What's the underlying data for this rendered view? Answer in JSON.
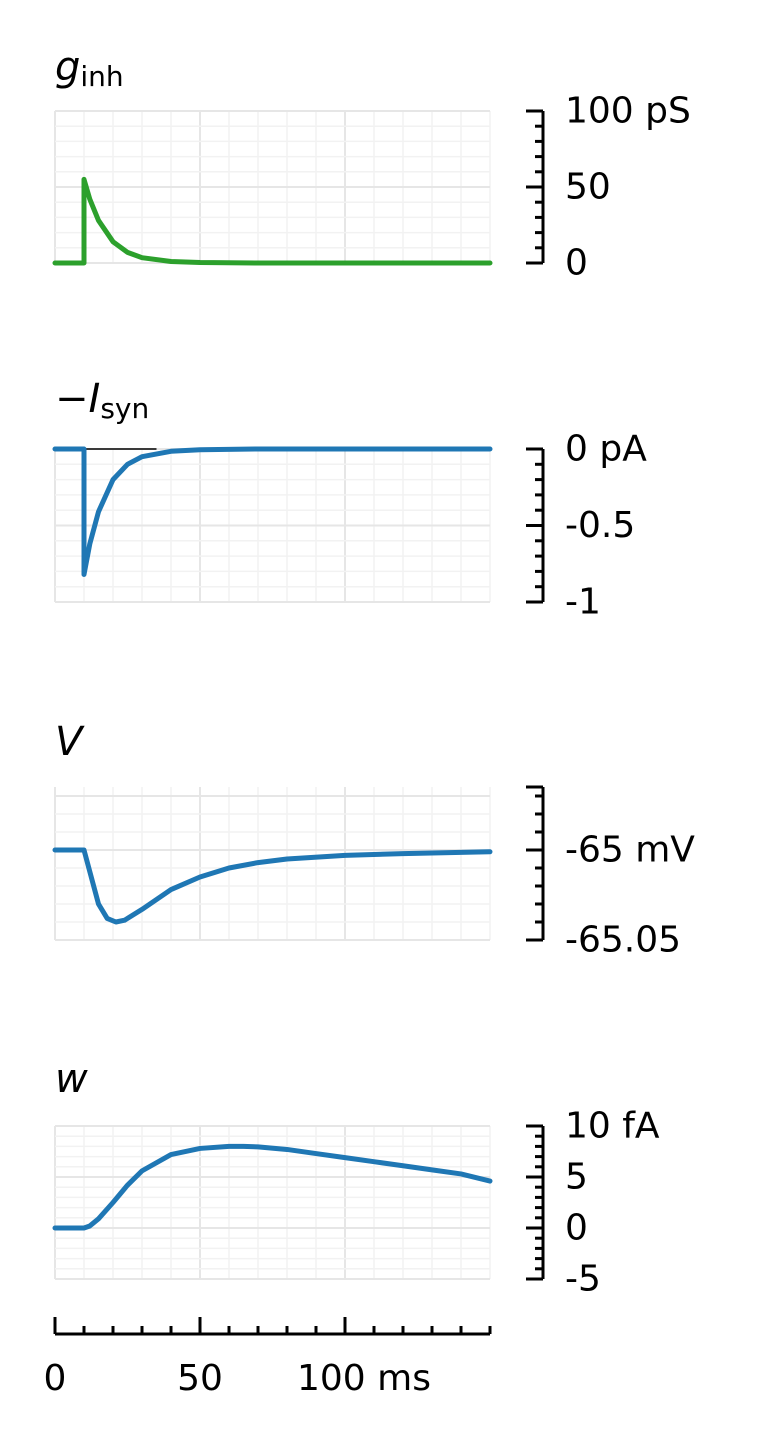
{
  "chart_data": [
    {
      "id": "g_inh",
      "type": "line",
      "title": {
        "main": "g",
        "sub": "inh",
        "prefix": ""
      },
      "ylim": [
        0,
        100
      ],
      "yticks": [
        0,
        50,
        100
      ],
      "ytick_labels": [
        "0",
        "50",
        "100 pS"
      ],
      "yminor_step": 10,
      "reference_line": null,
      "series": [
        {
          "color": "#2ca02c",
          "x": [
            0,
            10,
            10,
            12,
            15,
            20,
            25,
            30,
            40,
            50,
            70,
            100,
            150
          ],
          "y": [
            0,
            0,
            55,
            42,
            28,
            14,
            7,
            3.5,
            1,
            0.3,
            0,
            0,
            0
          ]
        }
      ]
    },
    {
      "id": "I_syn",
      "type": "line",
      "title": {
        "main": "I",
        "sub": "syn",
        "prefix": "−"
      },
      "ylim": [
        -1,
        0
      ],
      "yticks": [
        -1,
        -0.5,
        0
      ],
      "ytick_labels": [
        "-1",
        "-0.5",
        "0 pA"
      ],
      "yminor_step": 0.1,
      "reference_line": 0,
      "series": [
        {
          "color": "#1f77b4",
          "x": [
            0,
            10,
            10,
            12,
            15,
            20,
            25,
            30,
            40,
            50,
            70,
            100,
            150
          ],
          "y": [
            0,
            0,
            -0.82,
            -0.62,
            -0.41,
            -0.2,
            -0.1,
            -0.05,
            -0.015,
            -0.005,
            0,
            0,
            0
          ]
        }
      ]
    },
    {
      "id": "V",
      "type": "line",
      "title": {
        "main": "V",
        "sub": "",
        "prefix": ""
      },
      "ylim": [
        -65.05,
        -64.965
      ],
      "yticks": [
        -65.05,
        -65
      ],
      "ytick_labels": [
        "-65.05",
        "-65 mV"
      ],
      "yminor_step": 0.01,
      "reference_line": null,
      "series": [
        {
          "color": "#1f77b4",
          "x": [
            0,
            10,
            12,
            15,
            18,
            21,
            24,
            30,
            40,
            50,
            60,
            70,
            80,
            100,
            120,
            150
          ],
          "y": [
            -65.0,
            -65.0,
            -65.012,
            -65.03,
            -65.038,
            -65.04,
            -65.039,
            -65.033,
            -65.022,
            -65.015,
            -65.01,
            -65.007,
            -65.005,
            -65.003,
            -65.002,
            -65.001
          ]
        }
      ]
    },
    {
      "id": "w",
      "type": "line",
      "title": {
        "main": "w",
        "sub": "",
        "prefix": ""
      },
      "ylim": [
        -5,
        10
      ],
      "yticks": [
        -5,
        0,
        5,
        10
      ],
      "ytick_labels": [
        "-5",
        "0",
        "5",
        "10 fA"
      ],
      "yminor_step": 1,
      "reference_line": null,
      "series": [
        {
          "color": "#1f77b4",
          "x": [
            0,
            10,
            12,
            15,
            20,
            25,
            30,
            40,
            50,
            60,
            65,
            70,
            80,
            90,
            100,
            110,
            120,
            130,
            140,
            150
          ],
          "y": [
            0,
            0,
            0.2,
            0.9,
            2.5,
            4.2,
            5.6,
            7.2,
            7.8,
            8.0,
            8.0,
            7.95,
            7.7,
            7.3,
            6.9,
            6.5,
            6.1,
            5.7,
            5.3,
            4.6
          ]
        }
      ]
    }
  ],
  "x_axis": {
    "xlim": [
      0,
      150
    ],
    "ticks": [
      0,
      50,
      100
    ],
    "tick_labels": [
      "0",
      "50",
      "100 ms"
    ],
    "minor_step": 10
  }
}
